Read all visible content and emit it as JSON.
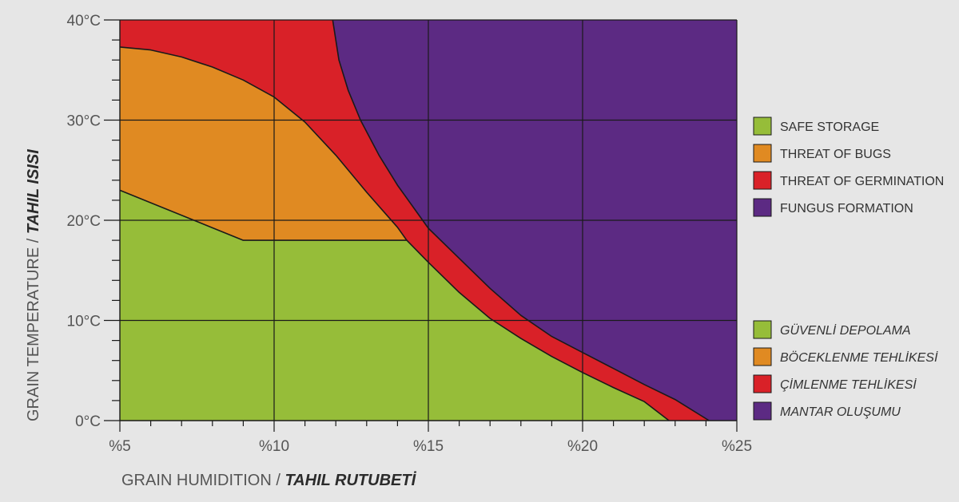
{
  "chart_data": {
    "type": "area",
    "title": "",
    "xlabel": "GRAIN HUMIDITION / ",
    "xlabel_bold": "TAHIL RUTUBETİ",
    "ylabel": "GRAIN TEMPERATURE / ",
    "ylabel_bold": "TAHIL ISISI",
    "x_unit": "%",
    "y_unit": "°C",
    "xlim": [
      5,
      25
    ],
    "ylim": [
      0,
      40
    ],
    "x_ticks": [
      {
        "value": 5,
        "label": "%5"
      },
      {
        "value": 10,
        "label": "%10"
      },
      {
        "value": 15,
        "label": "%15"
      },
      {
        "value": 20,
        "label": "%20"
      },
      {
        "value": 25,
        "label": "%25"
      }
    ],
    "y_ticks": [
      {
        "value": 0,
        "label": "0°C"
      },
      {
        "value": 10,
        "label": "10°C"
      },
      {
        "value": 20,
        "label": "20°C"
      },
      {
        "value": 30,
        "label": "30°C"
      },
      {
        "value": 40,
        "label": "40°C"
      }
    ],
    "x_minor_step": 1,
    "y_minor_step": 2,
    "grid": true,
    "legend_position": "right",
    "colors": {
      "safe": "#96bd39",
      "bugs": "#e08a22",
      "germination": "#d92128",
      "fungus": "#5c2a83",
      "background": "#e6e6e6",
      "line": "#1a1a1a"
    },
    "boundaries": {
      "safe_upper": [
        [
          5,
          23
        ],
        [
          9,
          18
        ],
        [
          14.3,
          18
        ],
        [
          15,
          15.8
        ],
        [
          16,
          12.8
        ],
        [
          17,
          10.2
        ],
        [
          18,
          8.2
        ],
        [
          19,
          6.4
        ],
        [
          20,
          4.8
        ],
        [
          21,
          3.3
        ],
        [
          22,
          1.9
        ],
        [
          22.8,
          0
        ]
      ],
      "bugs_upper": [
        [
          5,
          37.3
        ],
        [
          6,
          37
        ],
        [
          7,
          36.3
        ],
        [
          8,
          35.3
        ],
        [
          9,
          34
        ],
        [
          10,
          32.3
        ],
        [
          11,
          29.8
        ],
        [
          12,
          26.5
        ],
        [
          13,
          22.8
        ],
        [
          14,
          19.3
        ],
        [
          14.3,
          18
        ]
      ],
      "germination_upper": [
        [
          11.9,
          40
        ],
        [
          12.1,
          36
        ],
        [
          12.4,
          33
        ],
        [
          12.8,
          30
        ],
        [
          13.4,
          26.5
        ],
        [
          14,
          23.5
        ],
        [
          15,
          19.2
        ],
        [
          16,
          16.2
        ],
        [
          17,
          13.2
        ],
        [
          18,
          10.5
        ],
        [
          19,
          8.4
        ],
        [
          20,
          6.8
        ],
        [
          21,
          5.2
        ],
        [
          22,
          3.6
        ],
        [
          23,
          2.1
        ],
        [
          24.1,
          0
        ]
      ]
    },
    "series": [
      {
        "name": "SAFE STORAGE",
        "name_tr": "GÜVENLİ DEPOLAMA",
        "color": "#96bd39"
      },
      {
        "name": "THREAT OF BUGS",
        "name_tr": "BÖCEKLENME TEHLİKESİ",
        "color": "#e08a22"
      },
      {
        "name": "THREAT OF GERMINATION",
        "name_tr": "ÇİMLENME TEHLİKESİ",
        "color": "#d92128"
      },
      {
        "name": "FUNGUS FORMATION",
        "name_tr": "MANTAR OLUŞUMU",
        "color": "#5c2a83"
      }
    ]
  }
}
